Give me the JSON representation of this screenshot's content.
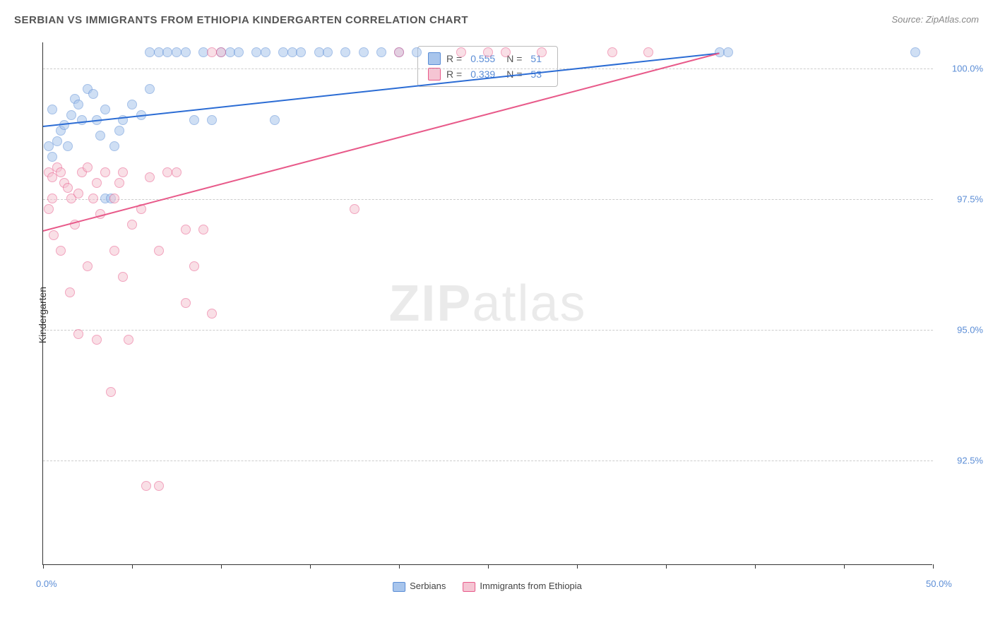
{
  "title": "SERBIAN VS IMMIGRANTS FROM ETHIOPIA KINDERGARTEN CORRELATION CHART",
  "source": "Source: ZipAtlas.com",
  "watermark_zip": "ZIP",
  "watermark_atlas": "atlas",
  "yaxis_title": "Kindergarten",
  "chart": {
    "type": "scatter",
    "xlim": [
      0,
      50
    ],
    "ylim": [
      90.5,
      100.5
    ],
    "x_ticks": [
      0,
      5,
      10,
      15,
      20,
      25,
      30,
      35,
      40,
      45,
      50
    ],
    "x_labels": [
      {
        "v": 0,
        "t": "0.0%"
      },
      {
        "v": 50,
        "t": "50.0%"
      }
    ],
    "y_gridlines": [
      92.5,
      95.0,
      97.5,
      100.0
    ],
    "y_labels": [
      {
        "v": 92.5,
        "t": "92.5%"
      },
      {
        "v": 95.0,
        "t": "95.0%"
      },
      {
        "v": 97.5,
        "t": "97.5%"
      },
      {
        "v": 100.0,
        "t": "100.0%"
      }
    ],
    "background_color": "#ffffff",
    "grid_color": "#cccccc",
    "point_radius": 7,
    "point_opacity": 0.55,
    "series": [
      {
        "name": "Serbians",
        "color_fill": "#a8c5ec",
        "color_stroke": "#5b8dd6",
        "trend_color": "#2b6cd4",
        "r": "0.555",
        "n": "51",
        "trend": {
          "x1": 0,
          "y1": 98.9,
          "x2": 38,
          "y2": 100.3
        },
        "points": [
          [
            0.3,
            98.5
          ],
          [
            0.5,
            98.3
          ],
          [
            0.8,
            98.6
          ],
          [
            1.0,
            98.8
          ],
          [
            1.2,
            98.9
          ],
          [
            1.4,
            98.5
          ],
          [
            0.5,
            99.2
          ],
          [
            1.6,
            99.1
          ],
          [
            1.8,
            99.4
          ],
          [
            2.0,
            99.3
          ],
          [
            2.2,
            99.0
          ],
          [
            2.5,
            99.6
          ],
          [
            2.8,
            99.5
          ],
          [
            3.0,
            99.0
          ],
          [
            3.2,
            98.7
          ],
          [
            3.5,
            99.2
          ],
          [
            4.0,
            98.5
          ],
          [
            4.3,
            98.8
          ],
          [
            4.5,
            99.0
          ],
          [
            5.0,
            99.3
          ],
          [
            5.5,
            99.1
          ],
          [
            6.0,
            99.6
          ],
          [
            6.0,
            100.3
          ],
          [
            6.5,
            100.3
          ],
          [
            7.0,
            100.3
          ],
          [
            7.5,
            100.3
          ],
          [
            8.0,
            100.3
          ],
          [
            8.5,
            99.0
          ],
          [
            9.0,
            100.3
          ],
          [
            9.5,
            99.0
          ],
          [
            10.0,
            100.3
          ],
          [
            10.5,
            100.3
          ],
          [
            11.0,
            100.3
          ],
          [
            12.0,
            100.3
          ],
          [
            12.5,
            100.3
          ],
          [
            13.0,
            99.0
          ],
          [
            13.5,
            100.3
          ],
          [
            14.0,
            100.3
          ],
          [
            14.5,
            100.3
          ],
          [
            15.5,
            100.3
          ],
          [
            16.0,
            100.3
          ],
          [
            17.0,
            100.3
          ],
          [
            18.0,
            100.3
          ],
          [
            19.0,
            100.3
          ],
          [
            20.0,
            100.3
          ],
          [
            21.0,
            100.3
          ],
          [
            3.5,
            97.5
          ],
          [
            3.8,
            97.5
          ],
          [
            38.0,
            100.3
          ],
          [
            38.5,
            100.3
          ],
          [
            49.0,
            100.3
          ]
        ]
      },
      {
        "name": "Immigrants from Ethiopia",
        "color_fill": "#f5c5d3",
        "color_stroke": "#e85a8a",
        "trend_color": "#e85a8a",
        "r": "0.339",
        "n": "53",
        "trend": {
          "x1": 0,
          "y1": 96.9,
          "x2": 38,
          "y2": 100.3
        },
        "points": [
          [
            0.3,
            98.0
          ],
          [
            0.5,
            97.9
          ],
          [
            0.8,
            98.1
          ],
          [
            1.0,
            98.0
          ],
          [
            1.2,
            97.8
          ],
          [
            1.4,
            97.7
          ],
          [
            0.5,
            97.5
          ],
          [
            1.6,
            97.5
          ],
          [
            1.8,
            97.0
          ],
          [
            2.0,
            97.6
          ],
          [
            2.2,
            98.0
          ],
          [
            2.5,
            98.1
          ],
          [
            2.8,
            97.5
          ],
          [
            3.0,
            97.8
          ],
          [
            3.2,
            97.2
          ],
          [
            3.5,
            98.0
          ],
          [
            4.0,
            97.5
          ],
          [
            4.3,
            97.8
          ],
          [
            4.5,
            98.0
          ],
          [
            5.0,
            97.0
          ],
          [
            5.5,
            97.3
          ],
          [
            6.0,
            97.9
          ],
          [
            6.5,
            96.5
          ],
          [
            7.0,
            98.0
          ],
          [
            7.5,
            98.0
          ],
          [
            8.0,
            96.9
          ],
          [
            8.5,
            96.2
          ],
          [
            9.0,
            96.9
          ],
          [
            9.5,
            95.3
          ],
          [
            4.0,
            96.5
          ],
          [
            2.5,
            96.2
          ],
          [
            4.5,
            96.0
          ],
          [
            4.8,
            94.8
          ],
          [
            2.0,
            94.9
          ],
          [
            3.0,
            94.8
          ],
          [
            1.5,
            95.7
          ],
          [
            3.8,
            93.8
          ],
          [
            5.8,
            92.0
          ],
          [
            6.5,
            92.0
          ],
          [
            8.0,
            95.5
          ],
          [
            17.5,
            97.3
          ],
          [
            10.0,
            100.3
          ],
          [
            20.0,
            100.3
          ],
          [
            23.5,
            100.3
          ],
          [
            25.0,
            100.3
          ],
          [
            26.0,
            100.3
          ],
          [
            28.0,
            100.3
          ],
          [
            32.0,
            100.3
          ],
          [
            34.0,
            100.3
          ],
          [
            9.5,
            100.3
          ],
          [
            0.3,
            97.3
          ],
          [
            0.6,
            96.8
          ],
          [
            1.0,
            96.5
          ]
        ]
      }
    ]
  },
  "bottom_legend": [
    {
      "label": "Serbians",
      "fill": "#a8c5ec",
      "stroke": "#5b8dd6"
    },
    {
      "label": "Immigrants from Ethiopia",
      "fill": "#f5c5d3",
      "stroke": "#e85a8a"
    }
  ]
}
